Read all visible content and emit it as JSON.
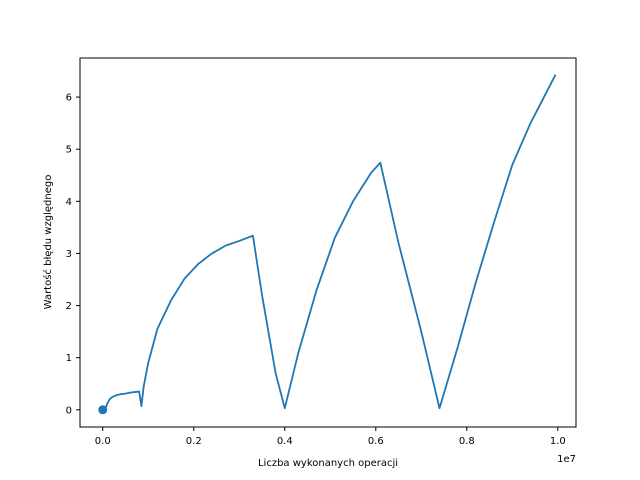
{
  "chart_data": {
    "type": "line",
    "title": "",
    "xlabel": "Liczba wykonanych operacji",
    "ylabel": "Wartość błędu względnego",
    "x_offset_label": "1e7",
    "xlim": [
      -0.5,
      10.4
    ],
    "ylim": [
      -0.33,
      6.75
    ],
    "grid": false,
    "xticks": [
      0,
      2,
      4,
      6,
      8,
      10
    ],
    "xtick_labels": [
      "0.0",
      "0.2",
      "0.4",
      "0.6",
      "0.8",
      "1.0"
    ],
    "yticks": [
      0,
      1,
      2,
      3,
      4,
      5,
      6
    ],
    "ytick_labels": [
      "0",
      "1",
      "2",
      "3",
      "4",
      "5",
      "6"
    ],
    "series": [
      {
        "color": "#1f77b4",
        "x_unit": "1e6",
        "x": [
          0.05,
          0.1,
          0.15,
          0.2,
          0.3,
          0.4,
          0.5,
          0.6,
          0.7,
          0.8,
          0.85,
          0.9,
          1.0,
          1.2,
          1.5,
          1.8,
          2.1,
          2.4,
          2.7,
          3.0,
          3.3,
          3.5,
          3.8,
          4.0,
          4.3,
          4.7,
          5.1,
          5.5,
          5.9,
          6.1,
          6.5,
          7.0,
          7.4,
          7.8,
          8.2,
          8.6,
          9.0,
          9.4,
          9.95
        ],
        "y": [
          0.0,
          0.12,
          0.2,
          0.24,
          0.28,
          0.3,
          0.31,
          0.33,
          0.34,
          0.35,
          0.07,
          0.45,
          0.9,
          1.55,
          2.1,
          2.52,
          2.8,
          3.0,
          3.15,
          3.24,
          3.34,
          2.2,
          0.7,
          0.03,
          1.1,
          2.3,
          3.3,
          4.0,
          4.55,
          4.74,
          3.2,
          1.5,
          0.03,
          1.2,
          2.45,
          3.6,
          4.7,
          5.5,
          6.43
        ]
      }
    ],
    "markers": [
      {
        "x": 0.0,
        "y": 0.0,
        "color": "#1f77b4"
      }
    ]
  }
}
